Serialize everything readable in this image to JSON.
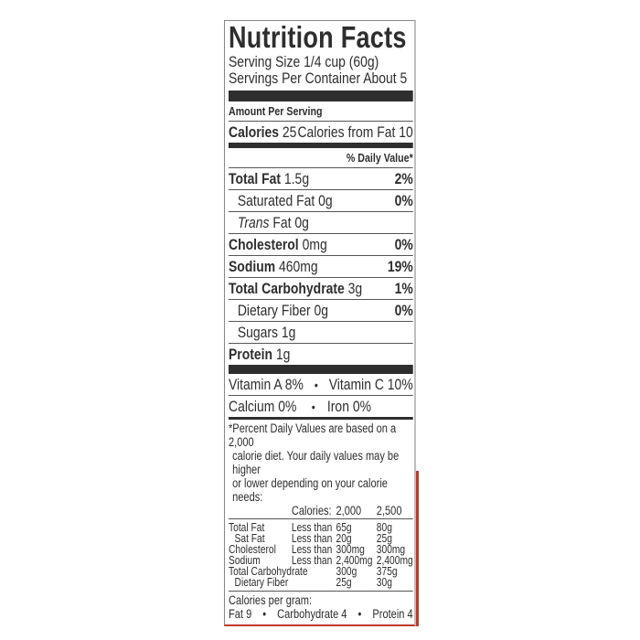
{
  "title": "Nutrition Facts",
  "serving_size": "Serving Size 1/4 cup (60g)",
  "servings_per_container": "Servings Per Container About 5",
  "amount_per_serving": "Amount Per Serving",
  "calories_label": "Calories",
  "calories_value": "25",
  "calories_from_fat": "Calories from Fat 10",
  "daily_value_header": "% Daily Value*",
  "nutrients": [
    {
      "name": "Total Fat",
      "amount": "1.5g",
      "dv": "2%"
    },
    {
      "name": "Saturated Fat 0g",
      "amount": "",
      "dv": "0%"
    },
    {
      "name": "Trans",
      "amount": "Fat 0g",
      "dv": ""
    },
    {
      "name": "Cholesterol",
      "amount": "0mg",
      "dv": "0%"
    },
    {
      "name": "Sodium",
      "amount": "460mg",
      "dv": "19%"
    },
    {
      "name": "Total Carbohydrate",
      "amount": "3g",
      "dv": "1%"
    },
    {
      "name": "Dietary Fiber 0g",
      "amount": "",
      "dv": "0%"
    },
    {
      "name": "Sugars 1g",
      "amount": "",
      "dv": ""
    },
    {
      "name": "Protein",
      "amount": "1g",
      "dv": ""
    }
  ],
  "vitamins": {
    "vitamin_a": "Vitamin A 8%",
    "vitamin_c": "Vitamin C 10%",
    "calcium": "Calcium 0%",
    "iron": "Iron 0%",
    "bullet": "•"
  },
  "footnote": [
    "*Percent Daily Values are based on a 2,000",
    "calorie diet. Your daily values may be higher",
    "or lower depending on your calorie needs:"
  ],
  "dv_table": {
    "header": [
      "",
      "",
      "Calories:",
      "2,000",
      "2,500"
    ],
    "rows": [
      [
        "Total Fat",
        "Less than",
        "65g",
        "80g"
      ],
      [
        "Sat Fat",
        "Less than",
        "20g",
        "25g"
      ],
      [
        "Cholesterol",
        "Less than",
        "300mg",
        "300mg"
      ],
      [
        "Sodium",
        "Less than",
        "2,400mg",
        "2,400mg"
      ],
      [
        "Total Carbohydrate",
        "",
        "300g",
        "375g"
      ],
      [
        "Dietary Fiber",
        "",
        "25g",
        "30g"
      ]
    ]
  },
  "calories_per_gram": {
    "label": "Calories per gram:",
    "fat": "Fat 9",
    "carb": "Carbohydrate 4",
    "protein": "Protein 4"
  },
  "colors": {
    "text": "#2e2e2e",
    "accent_strip": "#c0392b"
  }
}
